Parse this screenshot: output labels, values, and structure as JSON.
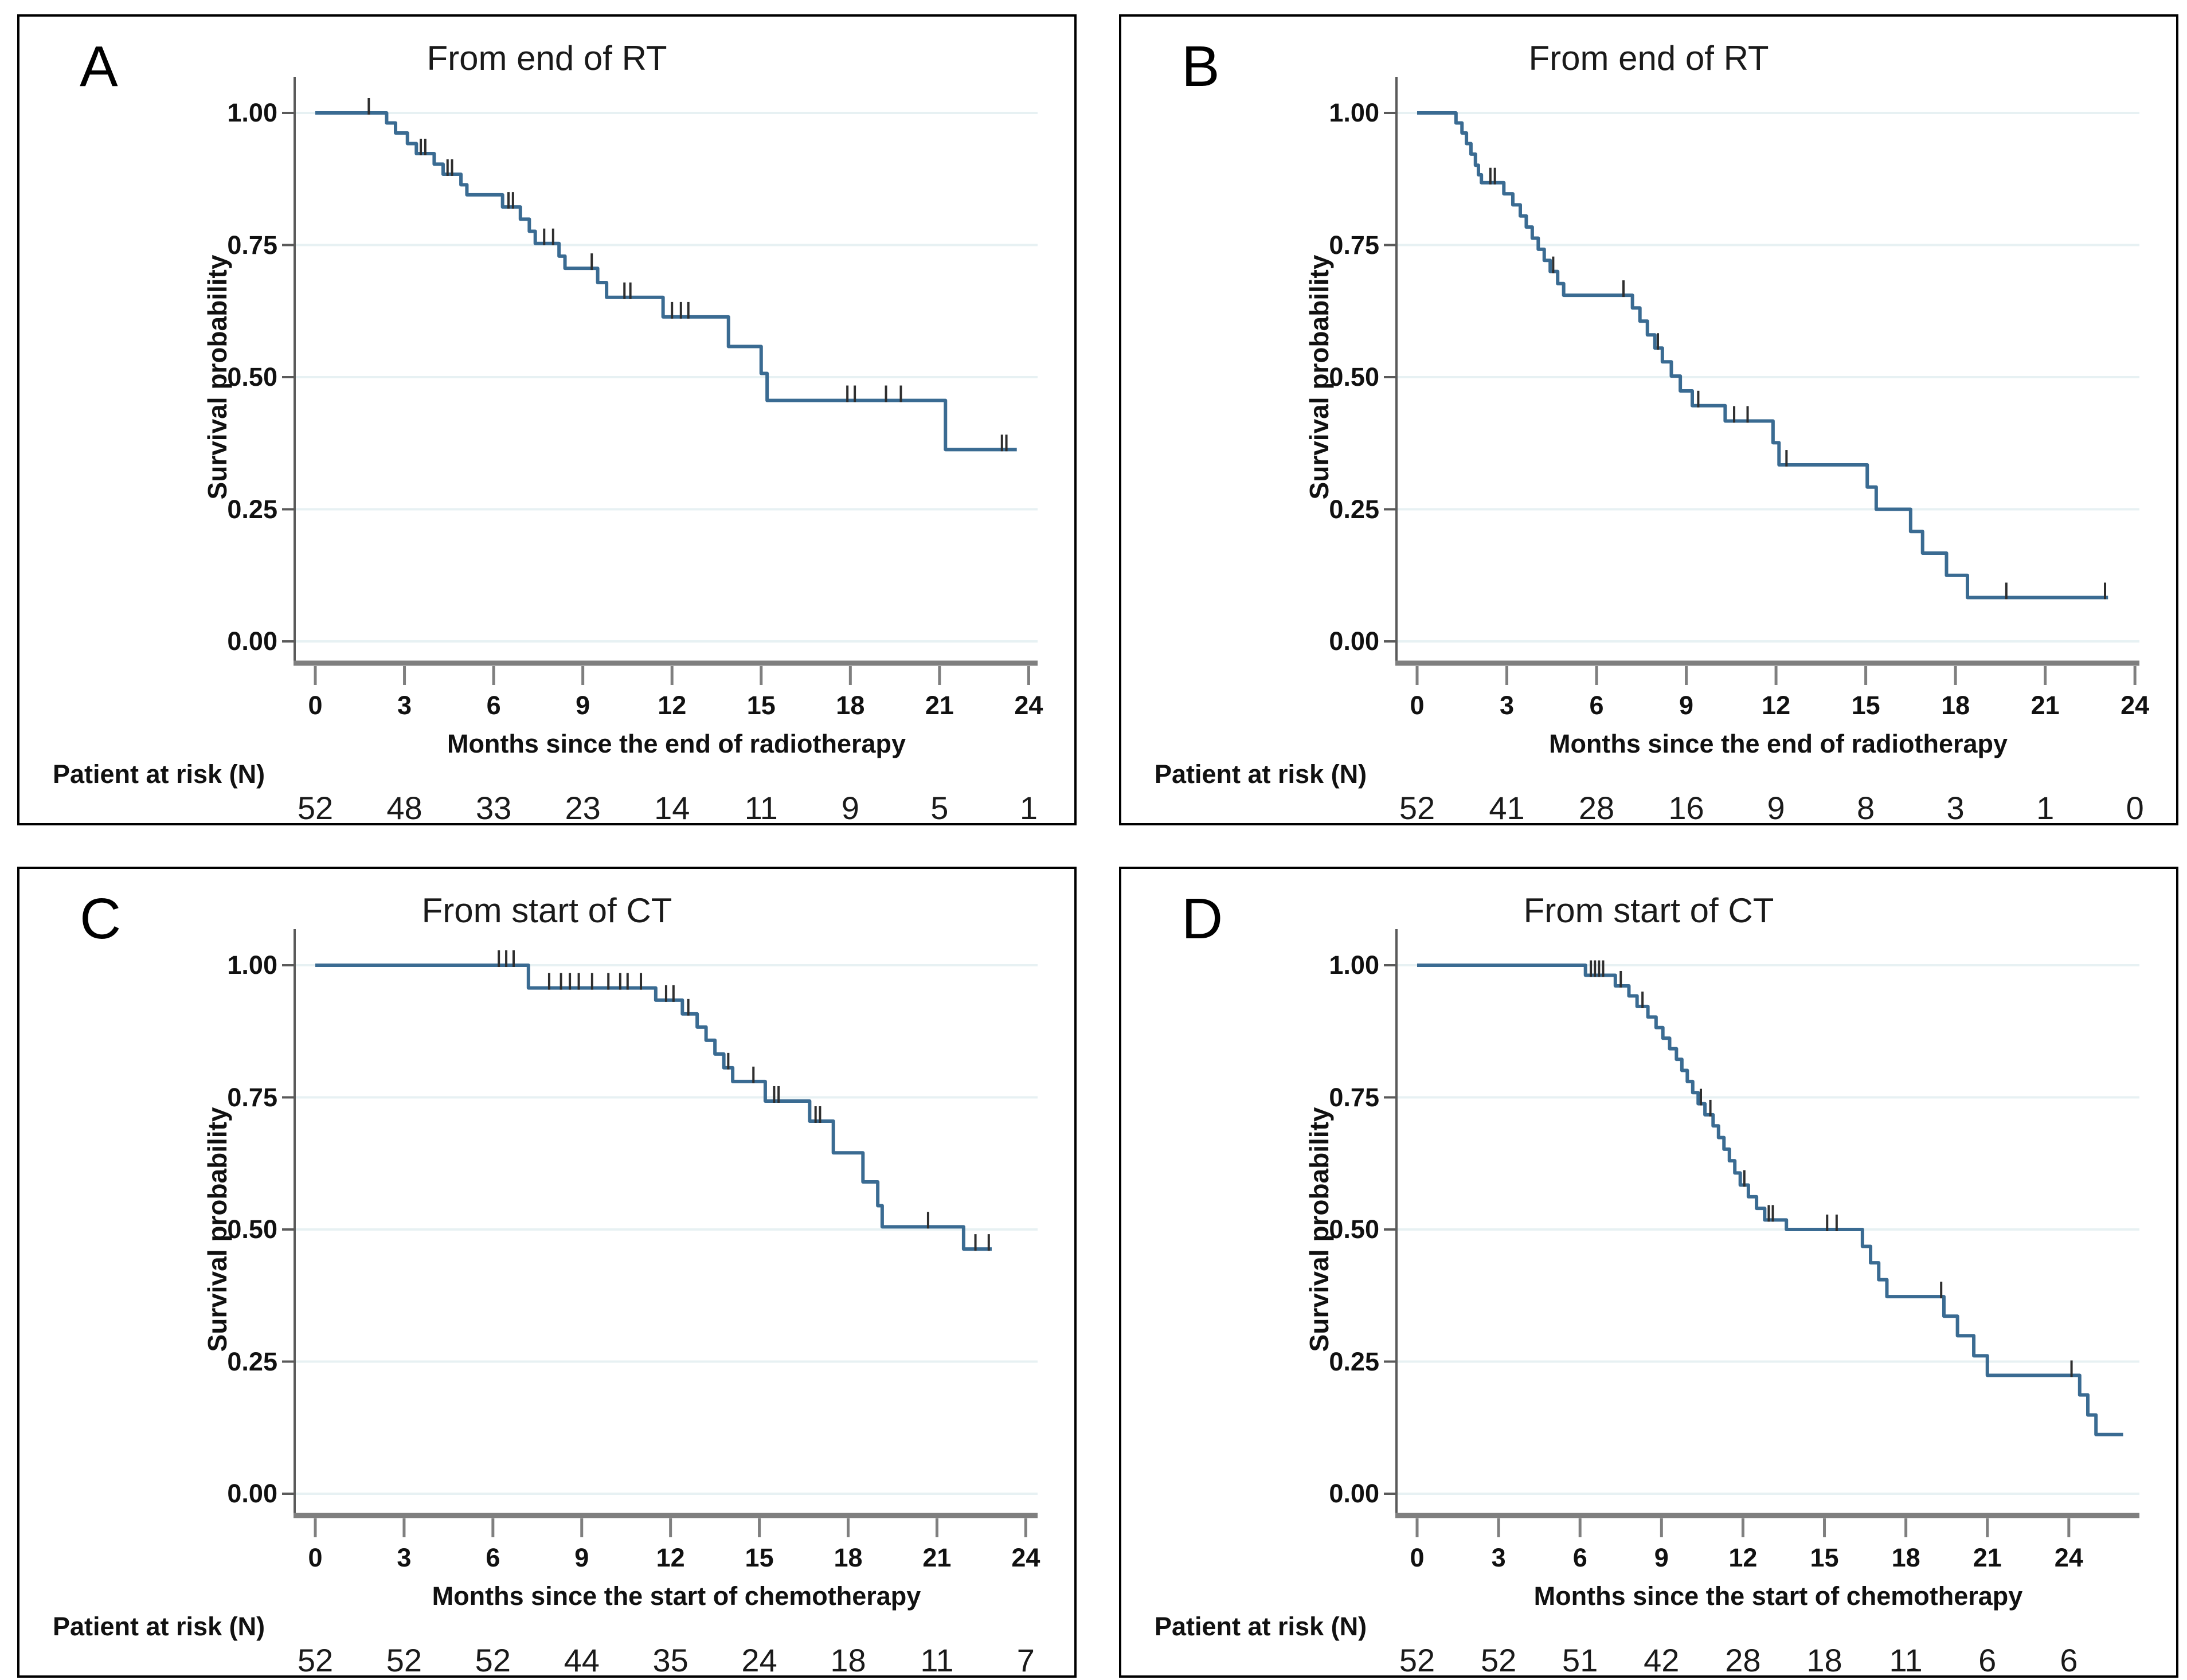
{
  "figure": {
    "background": "#ffffff",
    "panel_border_color": "#000000",
    "y_axis_label": "Survival probability",
    "at_risk_label": "Patient at risk (N)"
  },
  "colors": {
    "curve": "#3a6b92",
    "censor": "#2e2e2e",
    "grid": "#e7f1f3",
    "y_axis": "#5a5a5a",
    "x_axis": "#7f7f7f",
    "text": "#111111"
  },
  "chart_data": [
    {
      "id": "A",
      "type": "line",
      "subtype": "kaplan-meier-step",
      "panel_label": "A",
      "title": "From end of RT",
      "xlabel": "Months since the end of radiotherapy",
      "ylabel": "Survival probability",
      "xticks": [
        0,
        3,
        6,
        9,
        12,
        15,
        18,
        21,
        24
      ],
      "yticks": [
        "1.00",
        "0.75",
        "0.50",
        "0.25",
        "0.00"
      ],
      "ytick_values": [
        1.0,
        0.75,
        0.5,
        0.25,
        0.0
      ],
      "ylim": [
        0,
        1
      ],
      "xlim": [
        0,
        24.3
      ],
      "grid": "horizontal",
      "legend": "none",
      "at_risk_label": "Patient at risk (N)",
      "at_risk": [
        52,
        48,
        33,
        23,
        14,
        11,
        9,
        5,
        1
      ],
      "start": [
        0,
        1.0
      ],
      "steps": [
        [
          2.4,
          0.981
        ],
        [
          2.7,
          0.962
        ],
        [
          3.1,
          0.942
        ],
        [
          3.4,
          0.923
        ],
        [
          4.0,
          0.903
        ],
        [
          4.3,
          0.884
        ],
        [
          4.9,
          0.864
        ],
        [
          5.1,
          0.845
        ],
        [
          6.3,
          0.822
        ],
        [
          6.9,
          0.799
        ],
        [
          7.2,
          0.776
        ],
        [
          7.4,
          0.753
        ],
        [
          8.2,
          0.729
        ],
        [
          8.4,
          0.706
        ],
        [
          9.5,
          0.679
        ],
        [
          9.8,
          0.651
        ],
        [
          11.7,
          0.614
        ],
        [
          13.9,
          0.558
        ],
        [
          15.0,
          0.507
        ],
        [
          15.2,
          0.456
        ],
        [
          21.2,
          0.363
        ]
      ],
      "end_x": 23.6,
      "censors": [
        [
          1.8,
          1.0
        ],
        [
          3.55,
          0.923
        ],
        [
          3.7,
          0.923
        ],
        [
          4.45,
          0.884
        ],
        [
          4.6,
          0.884
        ],
        [
          6.5,
          0.822
        ],
        [
          6.65,
          0.822
        ],
        [
          7.7,
          0.753
        ],
        [
          8.0,
          0.753
        ],
        [
          9.3,
          0.706
        ],
        [
          10.4,
          0.651
        ],
        [
          10.6,
          0.651
        ],
        [
          12.0,
          0.614
        ],
        [
          12.3,
          0.614
        ],
        [
          12.55,
          0.614
        ],
        [
          17.9,
          0.456
        ],
        [
          18.15,
          0.456
        ],
        [
          19.2,
          0.456
        ],
        [
          19.7,
          0.456
        ],
        [
          23.1,
          0.363
        ],
        [
          23.25,
          0.363
        ]
      ]
    },
    {
      "id": "B",
      "type": "line",
      "subtype": "kaplan-meier-step",
      "panel_label": "B",
      "title": "From end of RT",
      "xlabel": "Months since the end of radiotherapy",
      "ylabel": "Survival probability",
      "xticks": [
        0,
        3,
        6,
        9,
        12,
        15,
        18,
        21,
        24
      ],
      "yticks": [
        "1.00",
        "0.75",
        "0.50",
        "0.25",
        "0.00"
      ],
      "ytick_values": [
        1.0,
        0.75,
        0.5,
        0.25,
        0.0
      ],
      "ylim": [
        0,
        1
      ],
      "xlim": [
        0,
        24.15
      ],
      "grid": "horizontal",
      "legend": "none",
      "at_risk_label": "Patient at risk (N)",
      "at_risk": [
        52,
        41,
        28,
        16,
        9,
        8,
        3,
        1,
        0
      ],
      "start": [
        0,
        1.0
      ],
      "steps": [
        [
          1.3,
          0.981
        ],
        [
          1.5,
          0.962
        ],
        [
          1.65,
          0.942
        ],
        [
          1.8,
          0.922
        ],
        [
          1.95,
          0.901
        ],
        [
          2.05,
          0.883
        ],
        [
          2.15,
          0.868
        ],
        [
          2.9,
          0.847
        ],
        [
          3.2,
          0.826
        ],
        [
          3.45,
          0.805
        ],
        [
          3.65,
          0.784
        ],
        [
          3.85,
          0.763
        ],
        [
          4.05,
          0.742
        ],
        [
          4.25,
          0.721
        ],
        [
          4.45,
          0.7
        ],
        [
          4.7,
          0.677
        ],
        [
          4.9,
          0.655
        ],
        [
          7.2,
          0.631
        ],
        [
          7.45,
          0.606
        ],
        [
          7.7,
          0.58
        ],
        [
          7.95,
          0.555
        ],
        [
          8.2,
          0.529
        ],
        [
          8.5,
          0.502
        ],
        [
          8.8,
          0.474
        ],
        [
          9.2,
          0.446
        ],
        [
          10.3,
          0.417
        ],
        [
          11.9,
          0.376
        ],
        [
          12.1,
          0.334
        ],
        [
          15.05,
          0.292
        ],
        [
          15.35,
          0.25
        ],
        [
          16.5,
          0.208
        ],
        [
          16.9,
          0.167
        ],
        [
          17.7,
          0.125
        ],
        [
          18.4,
          0.083
        ]
      ],
      "end_x": 23.1,
      "censors": [
        [
          2.45,
          0.868
        ],
        [
          2.6,
          0.868
        ],
        [
          4.55,
          0.7
        ],
        [
          6.9,
          0.655
        ],
        [
          8.05,
          0.555
        ],
        [
          9.4,
          0.446
        ],
        [
          10.6,
          0.417
        ],
        [
          11.05,
          0.417
        ],
        [
          12.35,
          0.334
        ],
        [
          19.7,
          0.083
        ],
        [
          23.0,
          0.083
        ]
      ]
    },
    {
      "id": "C",
      "type": "line",
      "subtype": "kaplan-meier-step",
      "panel_label": "C",
      "title": "From start of CT",
      "xlabel": "Months since the start of chemotherapy",
      "ylabel": "Survival probability",
      "xticks": [
        0,
        3,
        6,
        9,
        12,
        15,
        18,
        21,
        24
      ],
      "yticks": [
        "1.00",
        "0.75",
        "0.50",
        "0.25",
        "0.00"
      ],
      "ytick_values": [
        1.0,
        0.75,
        0.5,
        0.25,
        0.0
      ],
      "ylim": [
        0,
        1
      ],
      "xlim": [
        0,
        24.4
      ],
      "grid": "horizontal",
      "legend": "none",
      "at_risk_label": "Patient at risk (N)",
      "at_risk": [
        52,
        52,
        52,
        44,
        35,
        24,
        18,
        11,
        7
      ],
      "start": [
        0,
        1.0
      ],
      "steps": [
        [
          7.2,
          0.957
        ],
        [
          11.5,
          0.934
        ],
        [
          12.4,
          0.908
        ],
        [
          12.9,
          0.883
        ],
        [
          13.2,
          0.858
        ],
        [
          13.5,
          0.832
        ],
        [
          13.8,
          0.806
        ],
        [
          14.1,
          0.78
        ],
        [
          15.2,
          0.743
        ],
        [
          16.7,
          0.705
        ],
        [
          17.5,
          0.645
        ],
        [
          18.5,
          0.59
        ],
        [
          19.0,
          0.545
        ],
        [
          19.15,
          0.505
        ],
        [
          21.9,
          0.463
        ]
      ],
      "end_x": 22.85,
      "censors": [
        [
          6.2,
          1.0
        ],
        [
          6.45,
          1.0
        ],
        [
          6.7,
          1.0
        ],
        [
          7.9,
          0.957
        ],
        [
          8.3,
          0.957
        ],
        [
          8.6,
          0.957
        ],
        [
          8.9,
          0.957
        ],
        [
          9.35,
          0.957
        ],
        [
          9.9,
          0.957
        ],
        [
          10.3,
          0.957
        ],
        [
          10.55,
          0.957
        ],
        [
          11.0,
          0.957
        ],
        [
          11.85,
          0.934
        ],
        [
          12.1,
          0.934
        ],
        [
          12.6,
          0.908
        ],
        [
          13.95,
          0.806
        ],
        [
          14.8,
          0.78
        ],
        [
          15.5,
          0.743
        ],
        [
          15.65,
          0.743
        ],
        [
          16.9,
          0.705
        ],
        [
          17.05,
          0.705
        ],
        [
          20.7,
          0.505
        ],
        [
          22.3,
          0.463
        ],
        [
          22.75,
          0.463
        ]
      ]
    },
    {
      "id": "D",
      "type": "line",
      "subtype": "kaplan-meier-step",
      "panel_label": "D",
      "title": "From start of CT",
      "xlabel": "Months since the start of chemotherapy",
      "ylabel": "Survival probability",
      "xticks": [
        0,
        3,
        6,
        9,
        12,
        15,
        18,
        21,
        24
      ],
      "yticks": [
        "1.00",
        "0.75",
        "0.50",
        "0.25",
        "0.00"
      ],
      "ytick_values": [
        1.0,
        0.75,
        0.5,
        0.25,
        0.0
      ],
      "ylim": [
        0,
        1
      ],
      "xlim": [
        0,
        26.6
      ],
      "grid": "horizontal",
      "legend": "none",
      "at_risk_label": "Patient at risk (N)",
      "at_risk": [
        52,
        52,
        51,
        42,
        28,
        18,
        11,
        6,
        6
      ],
      "start": [
        0,
        1.0
      ],
      "steps": [
        [
          6.2,
          0.981
        ],
        [
          7.3,
          0.961
        ],
        [
          7.8,
          0.942
        ],
        [
          8.1,
          0.922
        ],
        [
          8.5,
          0.902
        ],
        [
          8.8,
          0.882
        ],
        [
          9.05,
          0.862
        ],
        [
          9.3,
          0.842
        ],
        [
          9.55,
          0.822
        ],
        [
          9.75,
          0.801
        ],
        [
          9.95,
          0.78
        ],
        [
          10.15,
          0.759
        ],
        [
          10.35,
          0.738
        ],
        [
          10.6,
          0.717
        ],
        [
          10.9,
          0.696
        ],
        [
          11.1,
          0.674
        ],
        [
          11.3,
          0.652
        ],
        [
          11.5,
          0.63
        ],
        [
          11.7,
          0.607
        ],
        [
          11.9,
          0.584
        ],
        [
          12.2,
          0.562
        ],
        [
          12.5,
          0.54
        ],
        [
          12.8,
          0.518
        ],
        [
          13.6,
          0.5
        ],
        [
          16.4,
          0.468
        ],
        [
          16.7,
          0.437
        ],
        [
          17.0,
          0.405
        ],
        [
          17.3,
          0.373
        ],
        [
          19.4,
          0.336
        ],
        [
          19.9,
          0.299
        ],
        [
          20.5,
          0.261
        ],
        [
          21.0,
          0.224
        ],
        [
          24.4,
          0.187
        ],
        [
          24.7,
          0.149
        ],
        [
          25.0,
          0.112
        ]
      ],
      "end_x": 26.0,
      "censors": [
        [
          6.4,
          0.981
        ],
        [
          6.55,
          0.981
        ],
        [
          6.7,
          0.981
        ],
        [
          6.85,
          0.981
        ],
        [
          7.5,
          0.961
        ],
        [
          8.3,
          0.922
        ],
        [
          10.45,
          0.738
        ],
        [
          10.8,
          0.717
        ],
        [
          12.05,
          0.584
        ],
        [
          12.95,
          0.518
        ],
        [
          13.1,
          0.518
        ],
        [
          15.1,
          0.5
        ],
        [
          15.45,
          0.5
        ],
        [
          19.3,
          0.373
        ],
        [
          24.1,
          0.224
        ]
      ]
    }
  ]
}
